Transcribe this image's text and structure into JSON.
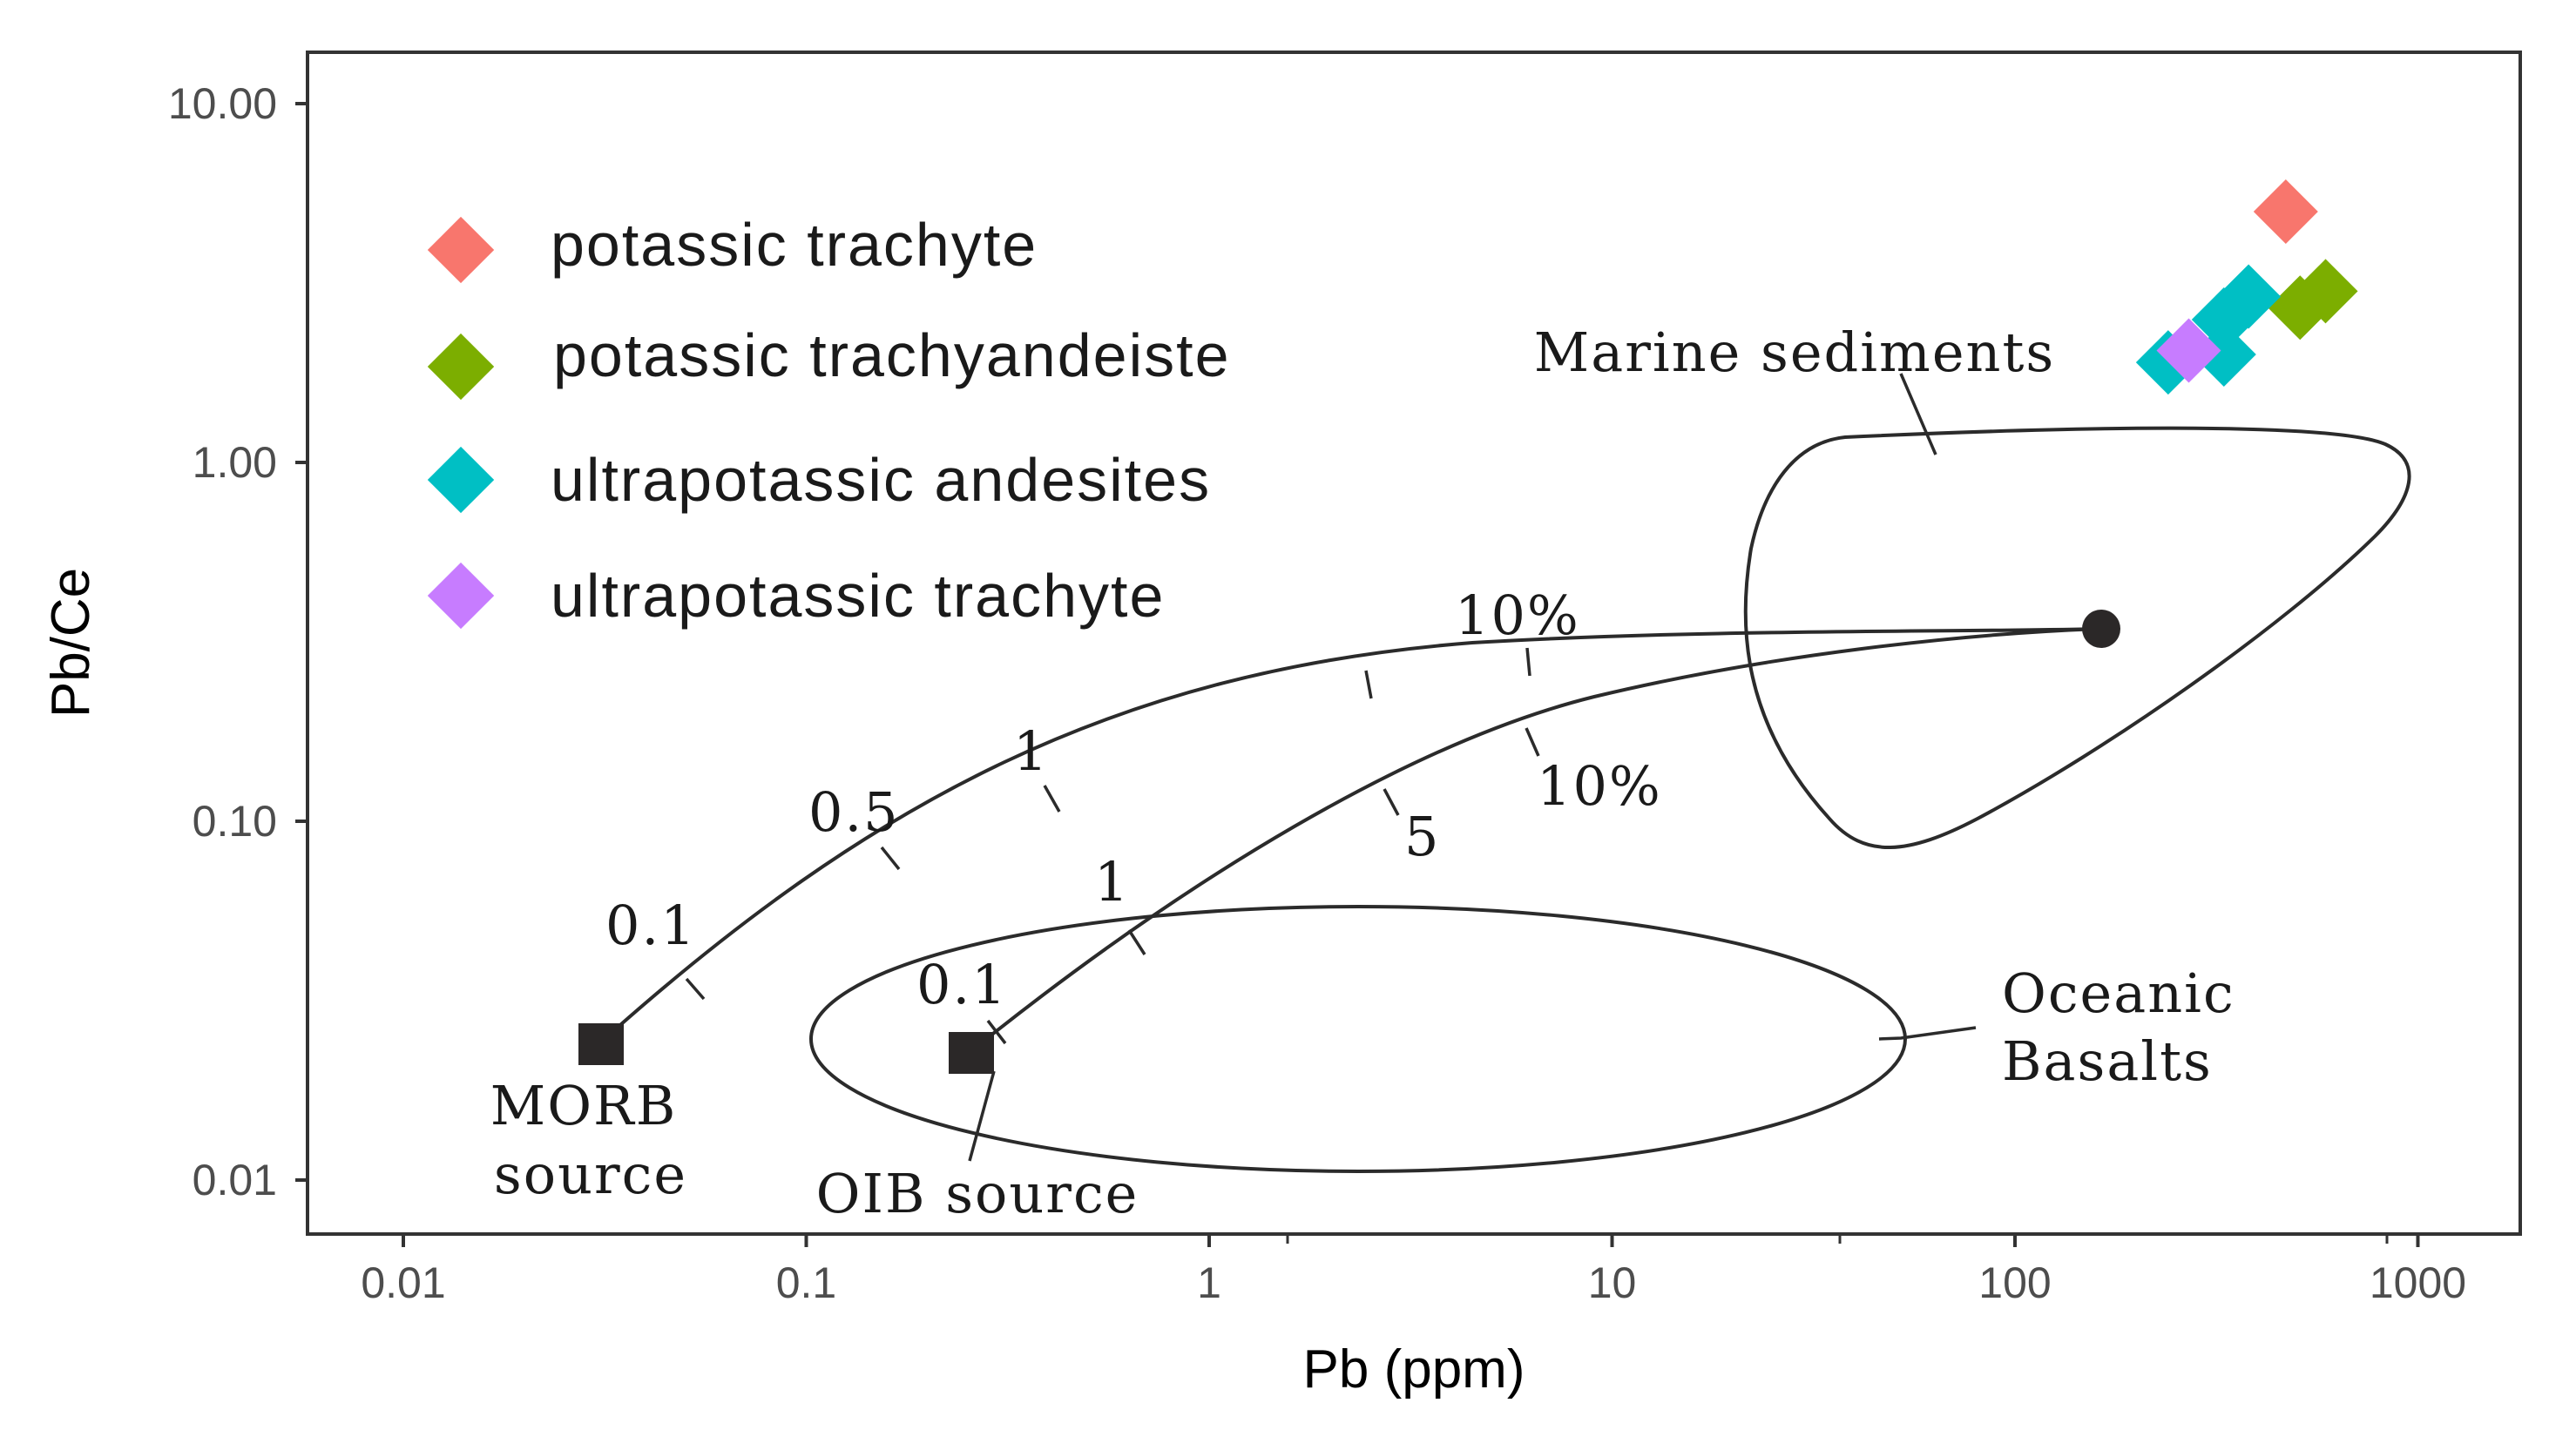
{
  "colors": {
    "potassic_trachyte": "#f8766d",
    "potassic_trachyandeiste": "#7cae00",
    "ultrapotassic_andesites": "#00bfc4",
    "ultrapotassic_trachyte": "#c77cff",
    "ink": "#2b2b2b"
  },
  "chart_data": {
    "type": "scatter",
    "xlabel": "Pb (ppm)",
    "ylabel": "Pb/Ce",
    "x_scale": "log",
    "y_scale": "log",
    "xlim": [
      0.006,
      1500
    ],
    "ylim": [
      0.0065,
      15
    ],
    "x_ticks": [
      "0.01",
      "0.1",
      "1",
      "10",
      "100",
      "1000"
    ],
    "y_ticks": [
      "0.01",
      "0.10",
      "1.00",
      "10.00"
    ],
    "grid": false,
    "legend_position": "top-left",
    "series": [
      {
        "name": "potassic trachyte",
        "color_key": "potassic_trachyte",
        "marker": "diamond",
        "points": [
          [
            470,
            5.0
          ]
        ]
      },
      {
        "name": "potassic trachyandeiste",
        "color_key": "potassic_trachyandeiste",
        "marker": "diamond",
        "points": [
          [
            590,
            3.0
          ],
          [
            510,
            2.7
          ]
        ]
      },
      {
        "name": "ultrapotassic andesites",
        "color_key": "ultrapotassic_andesites",
        "marker": "diamond",
        "points": [
          [
            380,
            2.9
          ],
          [
            330,
            2.5
          ],
          [
            240,
            1.9
          ],
          [
            330,
            2.0
          ]
        ]
      },
      {
        "name": "ultrapotassic trachyte",
        "color_key": "ultrapotassic_trachyte",
        "marker": "diamond",
        "points": [
          [
            270,
            2.05
          ]
        ]
      }
    ],
    "end_members": [
      {
        "label_lines": [
          "MORB",
          "source"
        ],
        "marker": "square",
        "x": 0.031,
        "y": 0.024
      },
      {
        "label_lines": [
          "OIB source"
        ],
        "marker": "square",
        "x": 0.26,
        "y": 0.023
      },
      {
        "label_lines": [],
        "marker": "circle",
        "x": 170,
        "y": 0.34
      }
    ],
    "fields": [
      {
        "label_lines": [
          "Oceanic",
          "Basalts"
        ],
        "shape": "ellipse"
      },
      {
        "label_lines": [
          "Marine sediments"
        ],
        "shape": "closed-curve"
      }
    ],
    "mixing_curves": [
      {
        "from": "MORB source",
        "to": "sediment",
        "ticks": [
          {
            "x": 0.055,
            "label": "0.1"
          },
          {
            "x": 0.16,
            "label": "0.5"
          },
          {
            "x": 0.4,
            "label": "1"
          },
          {
            "x": 2.4,
            "label": ""
          },
          {
            "x": 6.0,
            "label": "10%"
          }
        ]
      },
      {
        "from": "OIB source",
        "to": "sediment",
        "ticks": [
          {
            "x": 0.3,
            "label": "0.1"
          },
          {
            "x": 0.67,
            "label": "1"
          },
          {
            "x": 2.8,
            "label": "5"
          },
          {
            "x": 6.3,
            "label": "10%"
          }
        ]
      }
    ]
  }
}
